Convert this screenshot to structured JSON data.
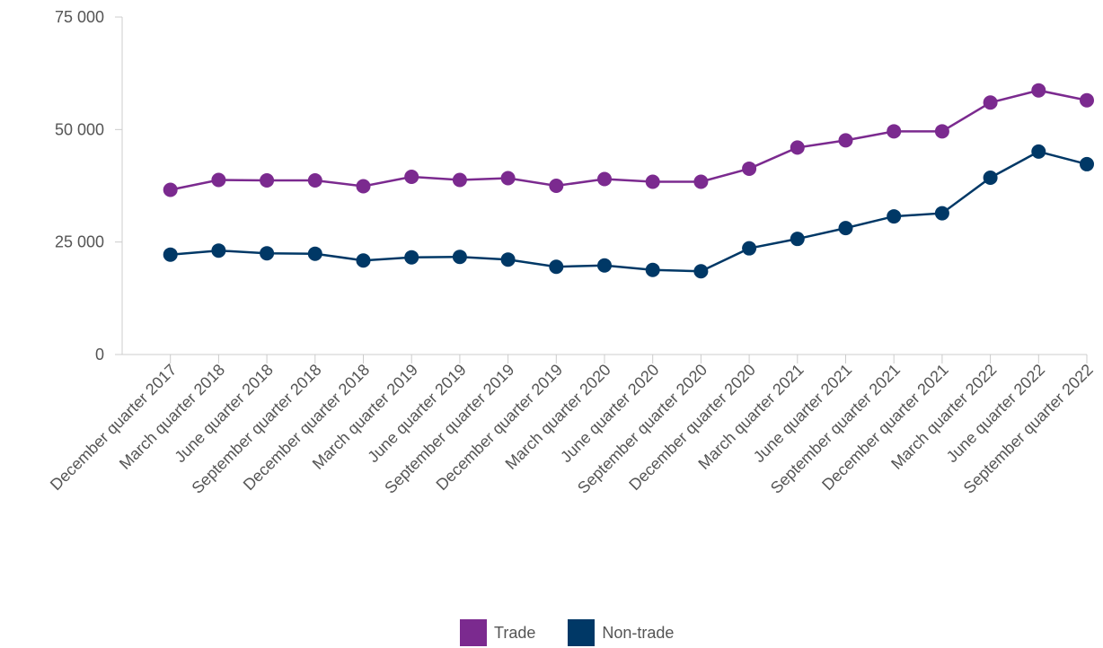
{
  "chart_data": {
    "type": "line",
    "categories": [
      "December quarter 2017",
      "March quarter 2018",
      "June quarter 2018",
      "September quarter 2018",
      "December quarter 2018",
      "March quarter 2019",
      "June quarter 2019",
      "September quarter 2019",
      "December quarter 2019",
      "March quarter 2020",
      "June quarter 2020",
      "September quarter 2020",
      "December quarter 2020",
      "March quarter 2021",
      "June quarter 2021",
      "September quarter 2021",
      "December quarter 2021",
      "March quarter 2022",
      "June quarter 2022",
      "September quarter 2022"
    ],
    "series": [
      {
        "name": "Trade",
        "color": "#7b2a8f",
        "values": [
          36600,
          38800,
          38700,
          38700,
          37400,
          39500,
          38800,
          39200,
          37500,
          39000,
          38400,
          38400,
          41300,
          46000,
          47600,
          49600,
          49600,
          56000,
          58700,
          56500
        ]
      },
      {
        "name": "Non-trade",
        "color": "#003866",
        "values": [
          22200,
          23100,
          22500,
          22400,
          20900,
          21600,
          21700,
          21100,
          19500,
          19800,
          18800,
          18500,
          23600,
          25700,
          28100,
          30700,
          31400,
          39300,
          45100,
          42300
        ]
      }
    ],
    "yticks": [
      "0",
      "25 000",
      "50 000",
      "75 000"
    ],
    "ytick_values": [
      0,
      25000,
      50000,
      75000
    ],
    "ylim": [
      0,
      75000
    ],
    "grid": false,
    "legend_position": "bottom-center"
  },
  "legend": {
    "trade_label": "Trade",
    "nontrade_label": "Non-trade"
  }
}
